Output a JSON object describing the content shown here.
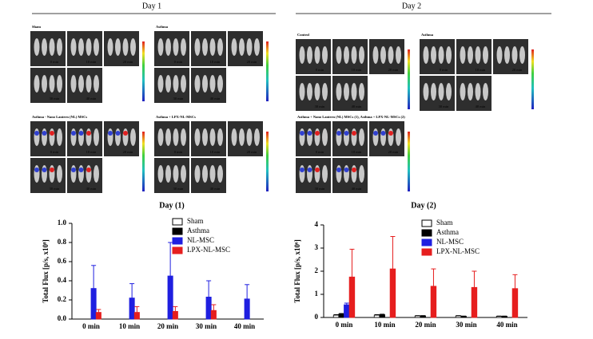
{
  "panels": {
    "day1": "Day 1",
    "day2": "Day 2",
    "times": [
      "0 min",
      "10 min",
      "20 min",
      "30 min",
      "40 min"
    ],
    "groups": [
      {
        "label": "Sham"
      },
      {
        "label": "Asthma"
      },
      {
        "label": "Asthma - Nano Lantern (NL) MSCs"
      },
      {
        "label": "Asthma + LPX-NL-MSCs"
      },
      {
        "label": "Control"
      },
      {
        "label": "Asthma"
      },
      {
        "label": "Asthma + Nano Lantern (NL) MSCs (1), Asthma + LPX-NL-MSCs (2)"
      }
    ]
  },
  "chart_data": [
    {
      "type": "bar",
      "title": "Day (1)",
      "ylabel": "Total Flux [p/s, x10⁸]",
      "categories": [
        "0 min",
        "10 min",
        "20 min",
        "30 min",
        "40 min"
      ],
      "series": [
        {
          "name": "Sham",
          "color": "#ffffff",
          "values": [
            0,
            0,
            0,
            0,
            0
          ],
          "errors": [
            0,
            0,
            0,
            0,
            0
          ]
        },
        {
          "name": "Asthma",
          "color": "#000000",
          "values": [
            0,
            0,
            0,
            0,
            0
          ],
          "errors": [
            0,
            0,
            0,
            0,
            0
          ]
        },
        {
          "name": "NL-MSC",
          "color": "#1f1fe0",
          "values": [
            0.32,
            0.22,
            0.45,
            0.23,
            0.21
          ],
          "errors": [
            0.24,
            0.15,
            0.35,
            0.17,
            0.15
          ]
        },
        {
          "name": "LPX-NL-MSC",
          "color": "#e61e1e",
          "values": [
            0.07,
            0.07,
            0.08,
            0.09,
            0
          ],
          "errors": [
            0.03,
            0.06,
            0.05,
            0.06,
            0
          ]
        }
      ],
      "ylim": [
        0,
        1.0
      ],
      "yticks": [
        {
          "value": 0,
          "label": "0.0"
        },
        0.2,
        0.4,
        0.6,
        0.8,
        {
          "value": 1.0,
          "label": "1.0"
        }
      ]
    },
    {
      "type": "bar",
      "title": "Day (2)",
      "ylabel": "Total Flux [p/s, x10⁶]",
      "categories": [
        "0 min",
        "10 min",
        "20 min",
        "30 min",
        "40 min"
      ],
      "series": [
        {
          "name": "Sham",
          "color": "#ffffff",
          "values": [
            0.1,
            0.1,
            0.07,
            0.07,
            0.05
          ],
          "errors": [
            0.02,
            0.02,
            0.01,
            0.01,
            0.01
          ]
        },
        {
          "name": "Asthma",
          "color": "#000000",
          "values": [
            0.15,
            0.12,
            0.07,
            0.05,
            0.05
          ],
          "errors": [
            0.02,
            0.02,
            0.01,
            0.01,
            0.01
          ]
        },
        {
          "name": "NL-MSC",
          "color": "#1f1fe0",
          "values": [
            0.55,
            0,
            0,
            0,
            0
          ],
          "errors": [
            0.07,
            0,
            0,
            0,
            0
          ]
        },
        {
          "name": "LPX-NL-MSC",
          "color": "#e61e1e",
          "values": [
            1.75,
            2.1,
            1.35,
            1.3,
            1.25
          ],
          "errors": [
            1.2,
            1.4,
            0.75,
            0.7,
            0.6
          ]
        }
      ],
      "ylim": [
        0,
        4
      ],
      "yticks": [
        0,
        1,
        2,
        3,
        4
      ]
    }
  ]
}
